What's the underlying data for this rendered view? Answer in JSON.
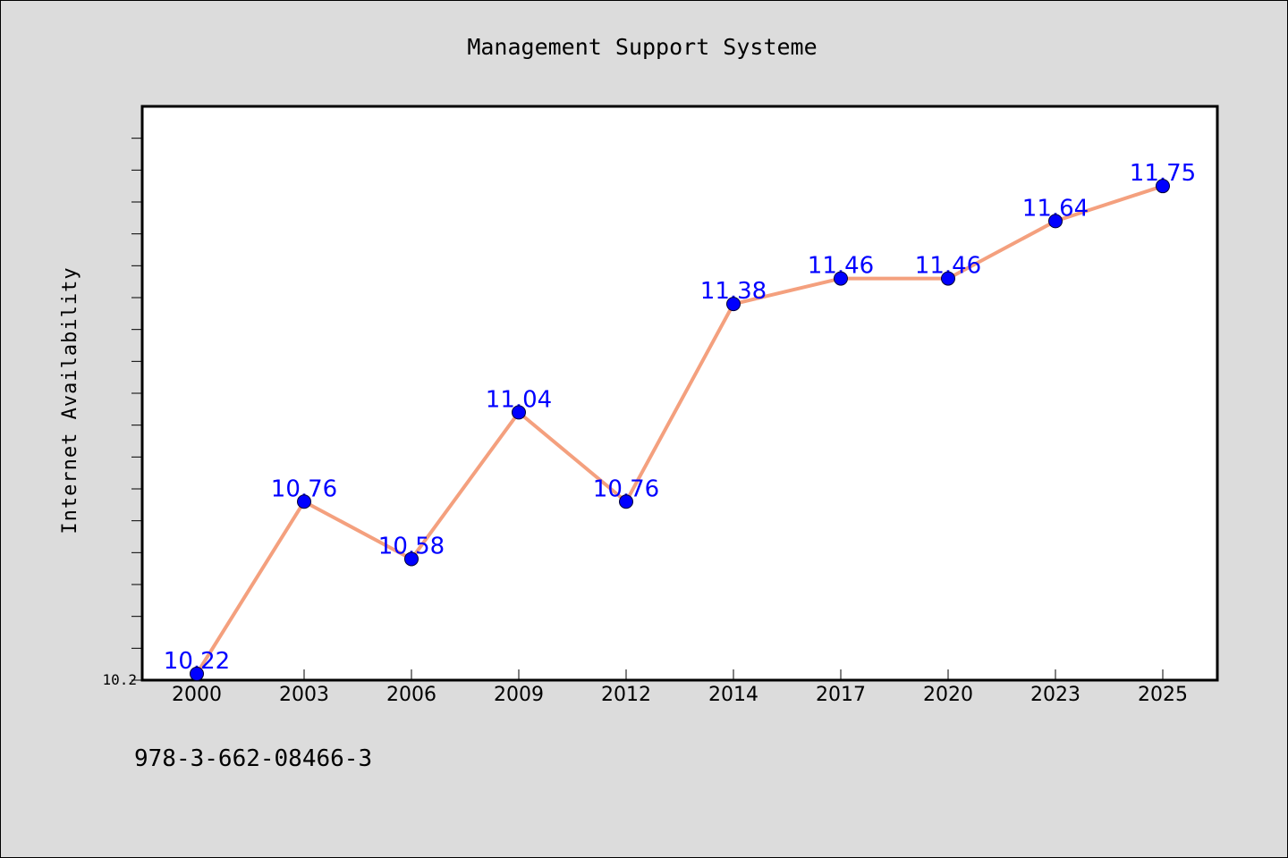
{
  "chart_data": {
    "type": "line",
    "title": "Management Support Systeme",
    "xlabel": "",
    "ylabel": "Internet Availability",
    "categories": [
      "2000",
      "2003",
      "2006",
      "2009",
      "2012",
      "2014",
      "2017",
      "2020",
      "2023",
      "2025"
    ],
    "series": [
      {
        "values": [
          10.22,
          10.76,
          10.58,
          11.04,
          10.76,
          11.38,
          11.46,
          11.46,
          11.64,
          11.75
        ]
      }
    ],
    "data_labels": [
      "10.22",
      "10.76",
      "10.58",
      "11.04",
      "10.76",
      "11.38",
      "11.46",
      "11.46",
      "11.64",
      "11.75"
    ],
    "y_tick_labels": [
      "10.2"
    ],
    "ylim": [
      10.2,
      12.0
    ],
    "grid": false,
    "colors": {
      "line": "#f4a07e",
      "marker": "#0000ff",
      "label": "#0000ff"
    }
  },
  "footer": {
    "text": "978-3-662-08466-3"
  }
}
